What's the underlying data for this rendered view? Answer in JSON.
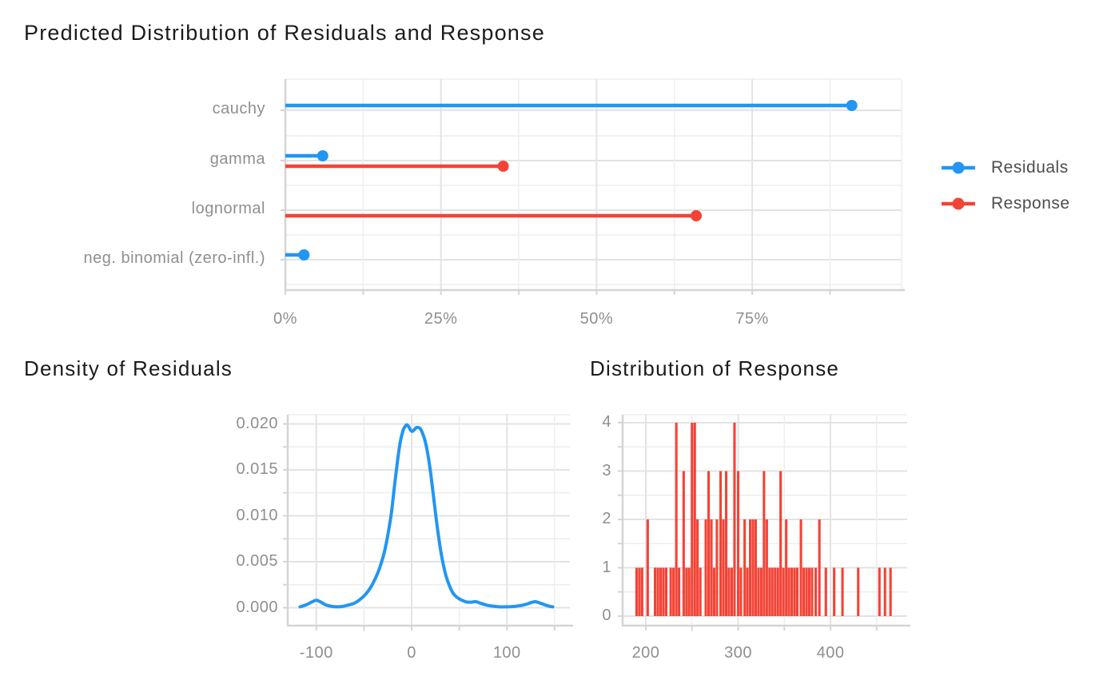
{
  "figure": {
    "background": "#ffffff",
    "accent_blue": "#2196F3",
    "accent_red": "#F44336"
  },
  "legend": {
    "items": [
      {
        "label": "Residuals",
        "color": "#2196F3"
      },
      {
        "label": "Response",
        "color": "#F44336"
      }
    ]
  },
  "chart_data": [
    {
      "type": "lollipop",
      "title": "Predicted Distribution of Residuals and Response",
      "categories": [
        "cauchy",
        "gamma",
        "lognormal",
        "neg. binomial (zero-infl.)"
      ],
      "unit": "percent",
      "series": [
        {
          "name": "Residuals",
          "color": "#2196F3",
          "values": [
            91,
            6,
            null,
            3
          ]
        },
        {
          "name": "Response",
          "color": "#F44336",
          "values": [
            null,
            35,
            66,
            null
          ]
        }
      ],
      "x_ticks": [
        {
          "value": 0,
          "label": "0%"
        },
        {
          "value": 25,
          "label": "25%"
        },
        {
          "value": 50,
          "label": "50%"
        },
        {
          "value": 75,
          "label": "75%"
        }
      ],
      "xlim": [
        0,
        99
      ],
      "grid": true,
      "legend_position": "right"
    },
    {
      "type": "line",
      "title": "Density of Residuals",
      "series_name": "Residuals",
      "color": "#2196F3",
      "x": [
        -117,
        -111,
        -105,
        -100,
        -95,
        -90,
        -84,
        -78,
        -72,
        -66,
        -60,
        -54,
        -48,
        -43,
        -38,
        -34,
        -30,
        -27,
        -24,
        -21,
        -18,
        -15,
        -12,
        -9,
        -7,
        -5,
        -3,
        -1,
        1,
        3,
        5,
        7,
        9,
        11,
        14,
        17,
        20,
        23,
        26,
        29,
        32,
        36,
        40,
        44,
        48,
        53,
        58,
        63,
        67,
        72,
        78,
        84,
        92,
        100,
        108,
        115,
        121,
        126,
        130,
        135,
        140,
        145,
        148
      ],
      "y": [
        0.0001,
        0.0003,
        0.0006,
        0.0008,
        0.0006,
        0.0003,
        0.00015,
        0.0001,
        0.00015,
        0.0003,
        0.0005,
        0.0009,
        0.0015,
        0.0022,
        0.0032,
        0.0042,
        0.0055,
        0.0068,
        0.0085,
        0.0105,
        0.0132,
        0.0158,
        0.018,
        0.0193,
        0.0197,
        0.0199,
        0.0197,
        0.0193,
        0.0192,
        0.0194,
        0.0196,
        0.0196,
        0.0195,
        0.0191,
        0.0182,
        0.0167,
        0.0146,
        0.0121,
        0.0095,
        0.0072,
        0.0053,
        0.0035,
        0.0023,
        0.0015,
        0.0011,
        0.0008,
        0.00062,
        0.0006,
        0.00066,
        0.0005,
        0.0003,
        0.00018,
        0.0001,
        0.0001,
        0.00014,
        0.00024,
        0.0004,
        0.00058,
        0.00065,
        0.0005,
        0.0003,
        0.00015,
        0.0001
      ],
      "x_ticks": [
        {
          "value": -100,
          "label": "-100"
        },
        {
          "value": 0,
          "label": "0"
        },
        {
          "value": 100,
          "label": "100"
        }
      ],
      "x_minor_ticks": [
        -50,
        50,
        150
      ],
      "y_ticks": [
        {
          "value": 0.0,
          "label": "0.000"
        },
        {
          "value": 0.005,
          "label": "0.005"
        },
        {
          "value": 0.01,
          "label": "0.010"
        },
        {
          "value": 0.015,
          "label": "0.015"
        },
        {
          "value": 0.02,
          "label": "0.020"
        }
      ],
      "xlim": [
        -132,
        163
      ],
      "ylim": [
        0,
        0.0205
      ],
      "grid": true
    },
    {
      "type": "bar",
      "title": "Distribution of Response",
      "series_name": "Response",
      "color": "#F44336",
      "bin_width": 2.6,
      "bars": [
        [
          190,
          1
        ],
        [
          193,
          1
        ],
        [
          196,
          1
        ],
        [
          202,
          2
        ],
        [
          210,
          1
        ],
        [
          213,
          1
        ],
        [
          216,
          1
        ],
        [
          219,
          1
        ],
        [
          222,
          1
        ],
        [
          227,
          1
        ],
        [
          230,
          1
        ],
        [
          233,
          4
        ],
        [
          236,
          1
        ],
        [
          241,
          3
        ],
        [
          244,
          1
        ],
        [
          247,
          1
        ],
        [
          250,
          4
        ],
        [
          253,
          4
        ],
        [
          256,
          2
        ],
        [
          259,
          1
        ],
        [
          265,
          2
        ],
        [
          268,
          3
        ],
        [
          271,
          2
        ],
        [
          274,
          1
        ],
        [
          277,
          2
        ],
        [
          281,
          3
        ],
        [
          284,
          2
        ],
        [
          287,
          3
        ],
        [
          290,
          1
        ],
        [
          293,
          1
        ],
        [
          296,
          4
        ],
        [
          300,
          3
        ],
        [
          303,
          1
        ],
        [
          307,
          2
        ],
        [
          310,
          1
        ],
        [
          313,
          2
        ],
        [
          316,
          2
        ],
        [
          319,
          2
        ],
        [
          322,
          1
        ],
        [
          325,
          1
        ],
        [
          328,
          3
        ],
        [
          331,
          2
        ],
        [
          334,
          1
        ],
        [
          337,
          1
        ],
        [
          340,
          1
        ],
        [
          343,
          1
        ],
        [
          346,
          3
        ],
        [
          349,
          1
        ],
        [
          352,
          2
        ],
        [
          355,
          1
        ],
        [
          358,
          1
        ],
        [
          361,
          1
        ],
        [
          364,
          1
        ],
        [
          368,
          2
        ],
        [
          371,
          1
        ],
        [
          374,
          1
        ],
        [
          377,
          1
        ],
        [
          380,
          1
        ],
        [
          384,
          1
        ],
        [
          388,
          2
        ],
        [
          395,
          1
        ],
        [
          404,
          1
        ],
        [
          413,
          1
        ],
        [
          430,
          1
        ],
        [
          453,
          1
        ],
        [
          459,
          1
        ],
        [
          465,
          1
        ]
      ],
      "x_ticks": [
        {
          "value": 200,
          "label": "200"
        },
        {
          "value": 300,
          "label": "300"
        },
        {
          "value": 400,
          "label": "400"
        }
      ],
      "x_minor_ticks": [
        250,
        350,
        450
      ],
      "y_ticks": [
        {
          "value": 0,
          "label": "0"
        },
        {
          "value": 1,
          "label": "1"
        },
        {
          "value": 2,
          "label": "2"
        },
        {
          "value": 3,
          "label": "3"
        },
        {
          "value": 4,
          "label": "4"
        }
      ],
      "xlim": [
        175,
        483
      ],
      "ylim": [
        0,
        4.2
      ],
      "grid": true
    }
  ]
}
